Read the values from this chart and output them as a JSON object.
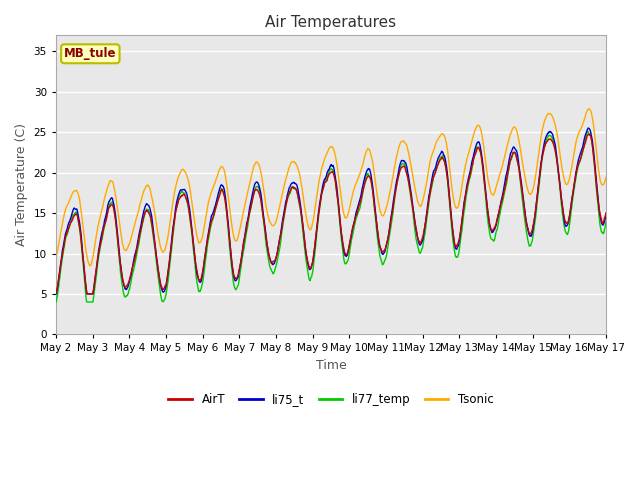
{
  "title": "Air Temperatures",
  "xlabel": "Time",
  "ylabel": "Air Temperature (C)",
  "site_label": "MB_tule",
  "ylim": [
    0,
    37
  ],
  "yticks": [
    0,
    5,
    10,
    15,
    20,
    25,
    30,
    35
  ],
  "x_tick_labels": [
    "May 2",
    "May 3",
    "May 4",
    "May 5",
    "May 6",
    "May 7",
    "May 8",
    "May 9",
    "May 10",
    "May 11",
    "May 12",
    "May 13",
    "May 14",
    "May 15",
    "May 16",
    "May 17"
  ],
  "colors": {
    "AirT": "#cc0000",
    "li75_t": "#0000cc",
    "li77_temp": "#00cc00",
    "Tsonic": "#ffaa00"
  },
  "fig_bg": "#ffffff",
  "plot_bg": "#e8e8e8",
  "grid_color": "#ffffff",
  "n_days": 15,
  "pts_per_day": 96
}
